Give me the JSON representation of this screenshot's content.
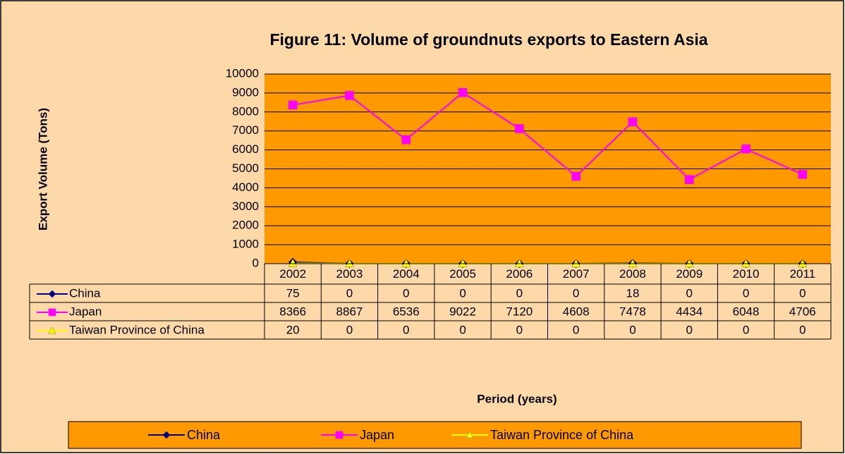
{
  "chart_data": {
    "type": "line",
    "title": "Figure 11: Volume of groundnuts exports to Eastern Asia",
    "ylabel": "Export Volume (Tons)",
    "xlabel": "Period (years)",
    "categories": [
      "2002",
      "2003",
      "2004",
      "2005",
      "2006",
      "2007",
      "2008",
      "2009",
      "2010",
      "2011"
    ],
    "series": [
      {
        "name": "China",
        "color": "#000080",
        "marker": "diamond",
        "values": [
          75,
          0,
          0,
          0,
          0,
          0,
          18,
          0,
          0,
          0
        ]
      },
      {
        "name": "Japan",
        "color": "#ff00ff",
        "marker": "square",
        "values": [
          8366,
          8867,
          6536,
          9022,
          7120,
          4608,
          7478,
          4434,
          6048,
          4706
        ]
      },
      {
        "name": "Taiwan Province of China",
        "color": "#ffff00",
        "marker": "triangle",
        "values": [
          20,
          0,
          0,
          0,
          0,
          0,
          0,
          0,
          0,
          0
        ]
      }
    ],
    "ylim": [
      0,
      10000
    ],
    "yticks": [
      0,
      1000,
      2000,
      3000,
      4000,
      5000,
      6000,
      7000,
      8000,
      9000,
      10000
    ],
    "grid": true,
    "legend": "bottom"
  }
}
